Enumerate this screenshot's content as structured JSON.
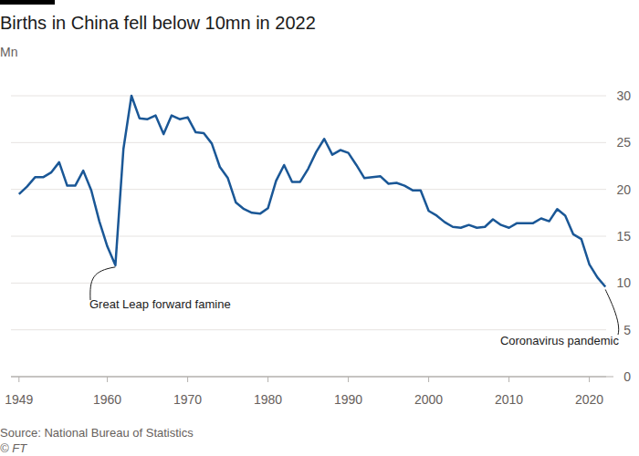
{
  "chart_data": {
    "type": "line",
    "title": "Births in China fell below 10mn in 2022",
    "subtitle": "Mn",
    "source": "Source: National Bureau of Statistics",
    "credit": "© FT",
    "x": [
      1949,
      1950,
      1951,
      1952,
      1953,
      1954,
      1955,
      1956,
      1957,
      1958,
      1959,
      1960,
      1961,
      1962,
      1963,
      1964,
      1965,
      1966,
      1967,
      1968,
      1969,
      1970,
      1971,
      1972,
      1973,
      1974,
      1975,
      1976,
      1977,
      1978,
      1979,
      1980,
      1981,
      1982,
      1983,
      1984,
      1985,
      1986,
      1987,
      1988,
      1989,
      1990,
      1991,
      1992,
      1993,
      1994,
      1995,
      1996,
      1997,
      1998,
      1999,
      2000,
      2001,
      2002,
      2003,
      2004,
      2005,
      2006,
      2007,
      2008,
      2009,
      2010,
      2011,
      2012,
      2013,
      2014,
      2015,
      2016,
      2017,
      2018,
      2019,
      2020,
      2021,
      2022
    ],
    "series": [
      {
        "name": "Births",
        "color": "#1a5796",
        "values": [
          19.5,
          20.3,
          21.3,
          21.3,
          21.8,
          22.9,
          20.4,
          20.4,
          22.0,
          19.9,
          16.6,
          13.9,
          11.9,
          24.3,
          30.0,
          27.6,
          27.5,
          27.9,
          25.9,
          27.9,
          27.5,
          27.7,
          26.1,
          26.0,
          24.9,
          22.4,
          21.2,
          18.6,
          17.9,
          17.5,
          17.4,
          18.0,
          20.9,
          22.6,
          20.8,
          20.8,
          22.2,
          24.0,
          25.4,
          23.7,
          24.2,
          23.9,
          22.6,
          21.2,
          21.3,
          21.4,
          20.6,
          20.7,
          20.4,
          19.9,
          19.9,
          17.7,
          17.2,
          16.5,
          16.0,
          15.9,
          16.2,
          15.9,
          16.0,
          16.8,
          16.2,
          15.9,
          16.4,
          16.4,
          16.4,
          16.9,
          16.6,
          17.9,
          17.2,
          15.2,
          14.7,
          12.0,
          10.6,
          9.6
        ]
      }
    ],
    "xlim": [
      1948,
      2023
    ],
    "xticks": [
      1949,
      1960,
      1970,
      1980,
      1990,
      2000,
      2010,
      2020
    ],
    "ylim": [
      0,
      30
    ],
    "yticks": [
      0,
      5,
      10,
      15,
      20,
      25,
      30
    ],
    "grid": true,
    "annotations": [
      {
        "text": "Great Leap forward famine",
        "x": 1961
      },
      {
        "text": "Coronavirus pandemic",
        "x": 2022
      }
    ]
  }
}
